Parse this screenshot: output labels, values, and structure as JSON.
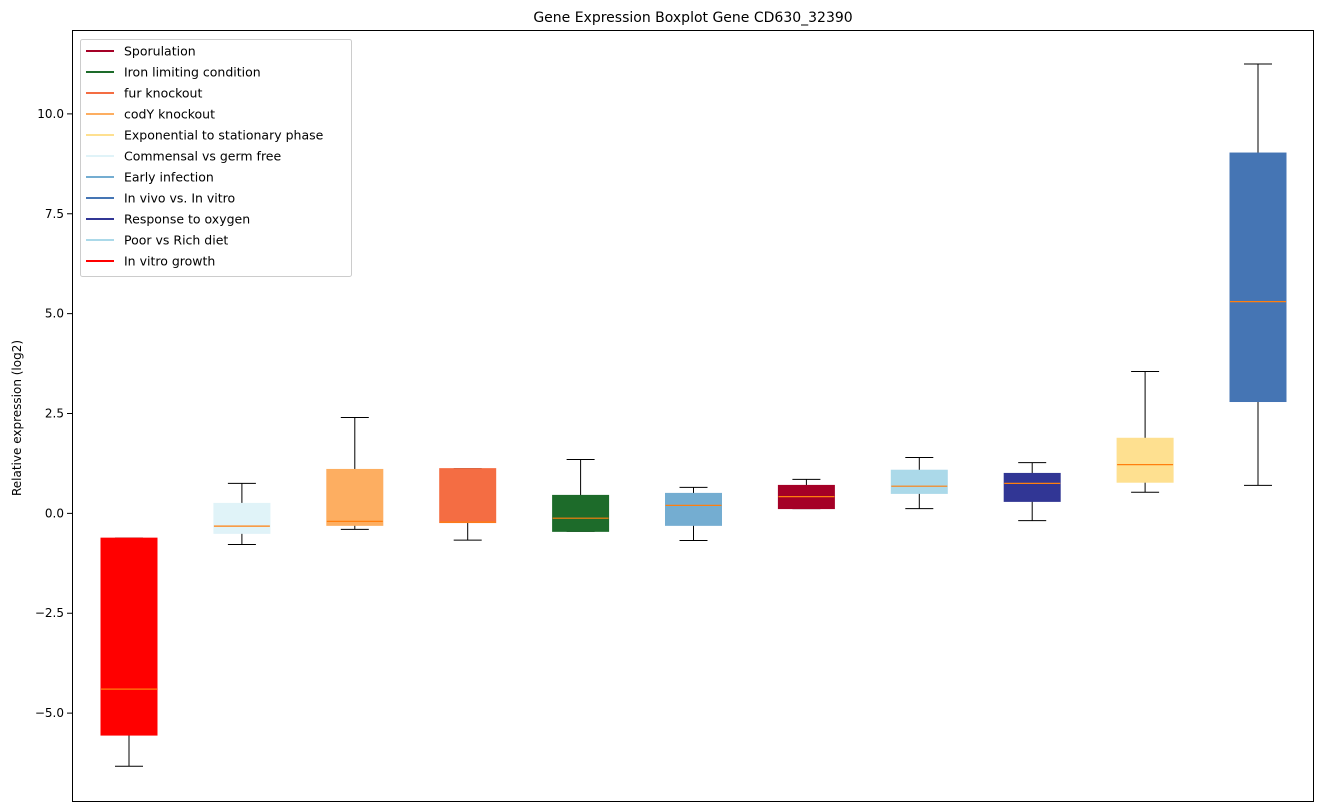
{
  "chart_data": {
    "type": "boxplot",
    "title": "Gene Expression Boxplot Gene CD630_32390",
    "xlabel": "",
    "ylabel": "Relative expression (log2)",
    "ylim": [
      -7.2,
      12.1
    ],
    "yticks": [
      -5.0,
      -2.5,
      0.0,
      2.5,
      5.0,
      7.5,
      10.0
    ],
    "ytick_labels": [
      "−5.0",
      "−2.5",
      "0.0",
      "2.5",
      "5.0",
      "7.5",
      "10.0"
    ],
    "show_xticks": false,
    "grid": false,
    "legend_position": "upper-left",
    "legend": [
      {
        "label": "Sporulation",
        "color": "#a50026"
      },
      {
        "label": "Iron limiting condition",
        "color": "#1d6b2a"
      },
      {
        "label": "fur knockout",
        "color": "#f46d43"
      },
      {
        "label": "codY knockout",
        "color": "#fdae61"
      },
      {
        "label": "Exponential to stationary phase",
        "color": "#fee090"
      },
      {
        "label": "Commensal vs germ free",
        "color": "#e0f3f8"
      },
      {
        "label": "Early infection",
        "color": "#74add1"
      },
      {
        "label": "In vivo vs. In vitro",
        "color": "#4575b4"
      },
      {
        "label": "Response to oxygen",
        "color": "#313695"
      },
      {
        "label": "Poor vs Rich diet",
        "color": "#abd9e9"
      },
      {
        "label": "In vitro growth",
        "color": "#ff0000"
      }
    ],
    "median_color": "#ff7f0e",
    "boxes": [
      {
        "series": "In vitro growth",
        "color": "#ff0000",
        "whisker_low": -6.33,
        "q1": -5.55,
        "median": -4.4,
        "q3": -0.62,
        "whisker_high": -0.62
      },
      {
        "series": "Commensal vs germ free",
        "color": "#e0f3f8",
        "whisker_low": -0.78,
        "q1": -0.5,
        "median": -0.32,
        "q3": 0.25,
        "whisker_high": 0.75
      },
      {
        "series": "codY knockout",
        "color": "#fdae61",
        "whisker_low": -0.4,
        "q1": -0.3,
        "median": -0.2,
        "q3": 1.1,
        "whisker_high": 2.4
      },
      {
        "series": "fur knockout",
        "color": "#f46d43",
        "whisker_low": -0.67,
        "q1": -0.23,
        "median": -0.22,
        "q3": 1.12,
        "whisker_high": 1.12
      },
      {
        "series": "Iron limiting condition",
        "color": "#1d6b2a",
        "whisker_low": -0.45,
        "q1": -0.45,
        "median": -0.12,
        "q3": 0.45,
        "whisker_high": 1.35
      },
      {
        "series": "Early infection",
        "color": "#74add1",
        "whisker_low": -0.68,
        "q1": -0.3,
        "median": 0.2,
        "q3": 0.5,
        "whisker_high": 0.65
      },
      {
        "series": "Sporulation",
        "color": "#a50026",
        "whisker_low": 0.12,
        "q1": 0.12,
        "median": 0.42,
        "q3": 0.7,
        "whisker_high": 0.85
      },
      {
        "series": "Poor vs Rich diet",
        "color": "#abd9e9",
        "whisker_low": 0.12,
        "q1": 0.5,
        "median": 0.68,
        "q3": 1.08,
        "whisker_high": 1.4
      },
      {
        "series": "Response to oxygen",
        "color": "#313695",
        "whisker_low": -0.18,
        "q1": 0.3,
        "median": 0.75,
        "q3": 1.0,
        "whisker_high": 1.27
      },
      {
        "series": "Exponential to stationary phase",
        "color": "#fee090",
        "whisker_low": 0.53,
        "q1": 0.78,
        "median": 1.22,
        "q3": 1.88,
        "whisker_high": 3.55
      },
      {
        "series": "In vivo vs. In vitro",
        "color": "#4575b4",
        "whisker_low": 0.7,
        "q1": 2.8,
        "median": 5.3,
        "q3": 9.02,
        "whisker_high": 11.25
      }
    ]
  }
}
